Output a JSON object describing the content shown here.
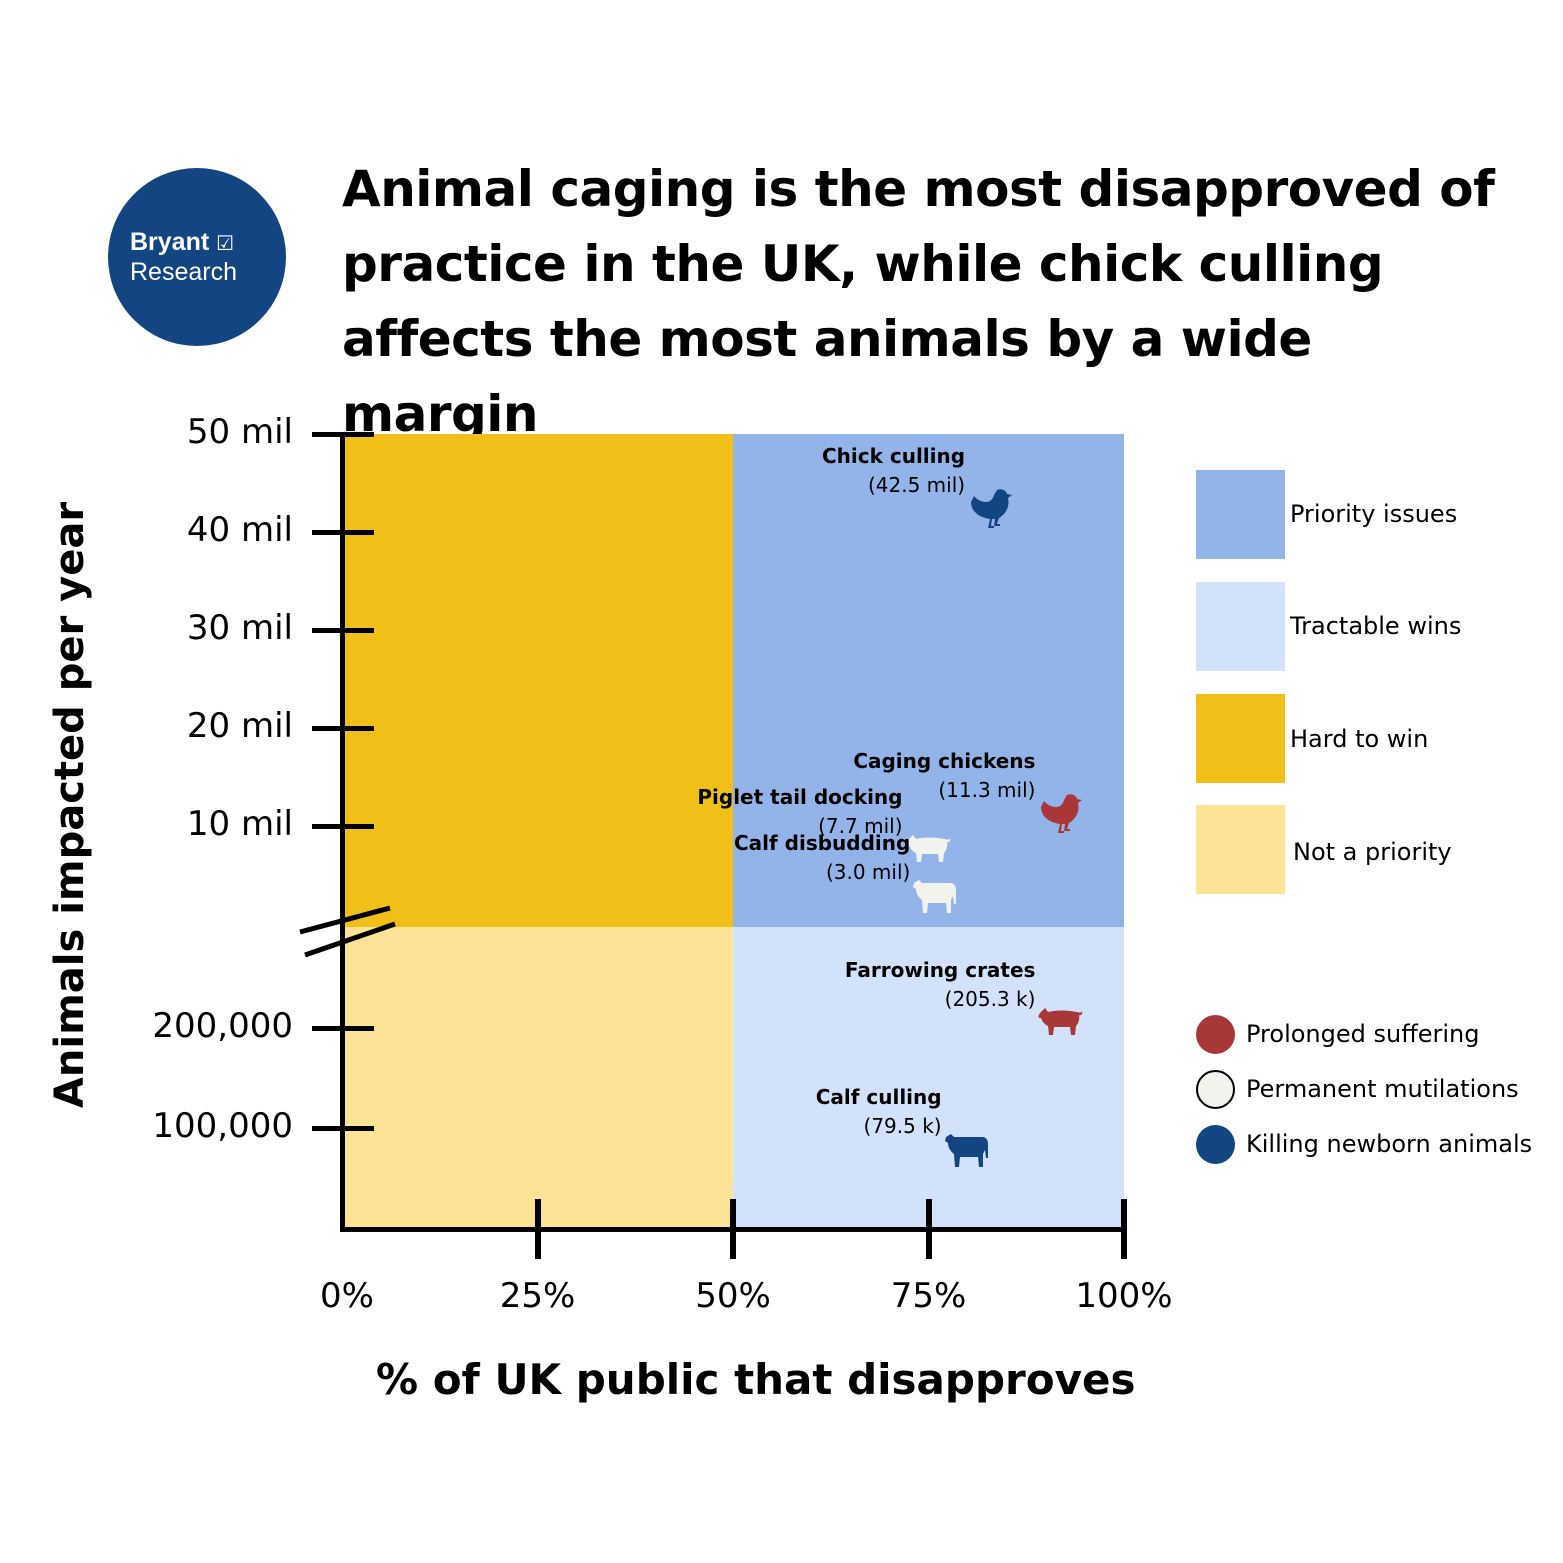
{
  "logo": {
    "line1": "Bryant",
    "check": "☑",
    "line2": "Research"
  },
  "chart_data": {
    "type": "scatter",
    "title": "Animal caging is the most disapproved of practice in the UK, while chick culling affects the most animals by a wide margin",
    "xlabel": "% of UK public that disapproves",
    "ylabel": "Animals impacted per year",
    "xlim": [
      0,
      100
    ],
    "x_ticks": [
      "0%",
      "25%",
      "50%",
      "75%",
      "100%"
    ],
    "y_upper_range_mil": [
      0,
      50
    ],
    "y_upper_ticks": [
      "50 mil",
      "40 mil",
      "30 mil",
      "20 mil",
      "10 mil"
    ],
    "y_lower_range": [
      0,
      300000
    ],
    "y_lower_ticks": [
      "200,000",
      "100,000"
    ],
    "axis_break": true,
    "points": [
      {
        "name": "Chick culling",
        "value_label": "(42.5 mil)",
        "disapprove_pct": 83,
        "animals": 42500000,
        "animal": "chicken",
        "category": "Killing newborn animals"
      },
      {
        "name": "Caging chickens",
        "value_label": "(11.3 mil)",
        "disapprove_pct": 92,
        "animals": 11300000,
        "animal": "chicken",
        "category": "Prolonged suffering"
      },
      {
        "name": "Piglet tail docking",
        "value_label": "(7.7 mil)",
        "disapprove_pct": 75,
        "animals": 7700000,
        "animal": "pig",
        "category": "Permanent mutilations"
      },
      {
        "name": "Calf disbudding",
        "value_label": "(3.0 mil)",
        "disapprove_pct": 76,
        "animals": 3000000,
        "animal": "cow",
        "category": "Permanent mutilations"
      },
      {
        "name": "Farrowing crates",
        "value_label": "(205.3 k)",
        "disapprove_pct": 92,
        "animals": 205300,
        "animal": "pig",
        "category": "Prolonged suffering"
      },
      {
        "name": "Calf culling",
        "value_label": "(79.5 k)",
        "disapprove_pct": 80,
        "animals": 79500,
        "animal": "cow",
        "category": "Killing newborn animals"
      }
    ],
    "quadrants": [
      {
        "label": "Priority issues",
        "color": "#93B4E8"
      },
      {
        "label": "Tractable wins",
        "color": "#D3E2FB"
      },
      {
        "label": "Hard to win",
        "color": "#F0C019"
      },
      {
        "label": "Not a priority",
        "color": "#FCE395"
      }
    ],
    "categories": [
      {
        "label": "Prolonged suffering",
        "color": "#A83838"
      },
      {
        "label": "Permanent mutilations",
        "color": "#F3F3EE"
      },
      {
        "label": "Killing newborn animals",
        "color": "#134583"
      }
    ],
    "legend_placement": "right"
  }
}
